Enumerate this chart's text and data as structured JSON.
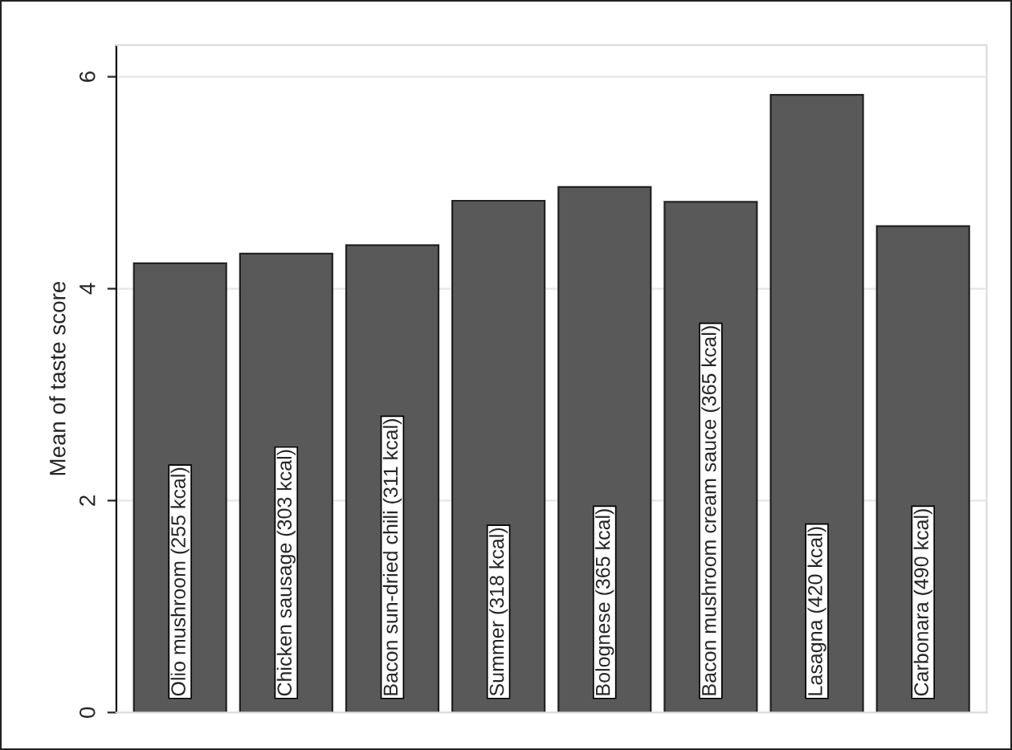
{
  "chart_data": {
    "type": "bar",
    "ylabel": "Mean of taste score",
    "categories": [
      "Olio mushroom (255 kcal)",
      "Chicken sausage (303 kcal)",
      "Bacon sun-dried chili (311 kcal)",
      "Summer (318 kcal)",
      "Bolognese (365 kcal)",
      "Bacon mushroom cream sauce (365 kcal)",
      "Lasagna (420 kcal)",
      "Carbonara (490 kcal)"
    ],
    "values": [
      4.24,
      4.33,
      4.41,
      4.83,
      4.96,
      4.82,
      5.83,
      4.59
    ],
    "color": "#595959",
    "ylim": [
      0,
      6.3
    ],
    "yticks": [
      0,
      2,
      4,
      6
    ],
    "grid": "y"
  }
}
